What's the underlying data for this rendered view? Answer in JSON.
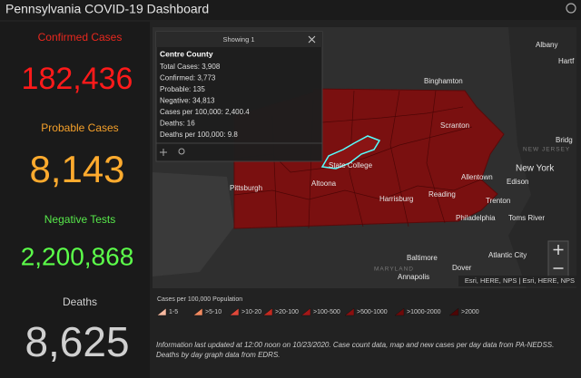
{
  "header": {
    "title": "Pennsylvania COVID-19 Dashboard"
  },
  "stats": [
    {
      "label": "Confirmed Cases",
      "value": "182,436"
    },
    {
      "label": "Probable Cases",
      "value": "8,143"
    },
    {
      "label": "Negative Tests",
      "value": "2,200,868"
    },
    {
      "label": "Deaths",
      "value": "8,625"
    }
  ],
  "popup": {
    "header": "Showing 1",
    "title": "Centre County",
    "lines": [
      "Total Cases: 3,908",
      "Confirmed: 3,773",
      "Probable: 135",
      "Negative: 34,813",
      "Cases per 100,000: 2,400.4",
      "Deaths: 16",
      "Deaths per 100,000: 9.8"
    ]
  },
  "map_labels": [
    "Albany",
    "Binghamton",
    "Scranton",
    "State College",
    "Pittsburgh",
    "Altoona",
    "Harrisburg",
    "Allentown",
    "New York",
    "Edison",
    "Trenton",
    "Reading",
    "Philadelphia",
    "Toms River",
    "Baltimore",
    "Atlantic City",
    "Dover",
    "Annapolis",
    "NEW JERSEY",
    "MARYLAND",
    "Bridg",
    "Hartf"
  ],
  "attribution": "Esri, HERE, NPS | Esri, HERE, NPS",
  "legend": {
    "title": "Cases per 100,000 Population",
    "items": [
      "1-5",
      ">5-10",
      ">10-20",
      ">20-100",
      ">100-500",
      ">500-1000",
      ">1000-2000",
      ">2000"
    ]
  },
  "footer": [
    "Information last updated at 12:00 noon on 10/23/2020. Case count data, map and new cases per day data from PA-NEDSS.",
    "Deaths by day graph data from EDRS."
  ]
}
